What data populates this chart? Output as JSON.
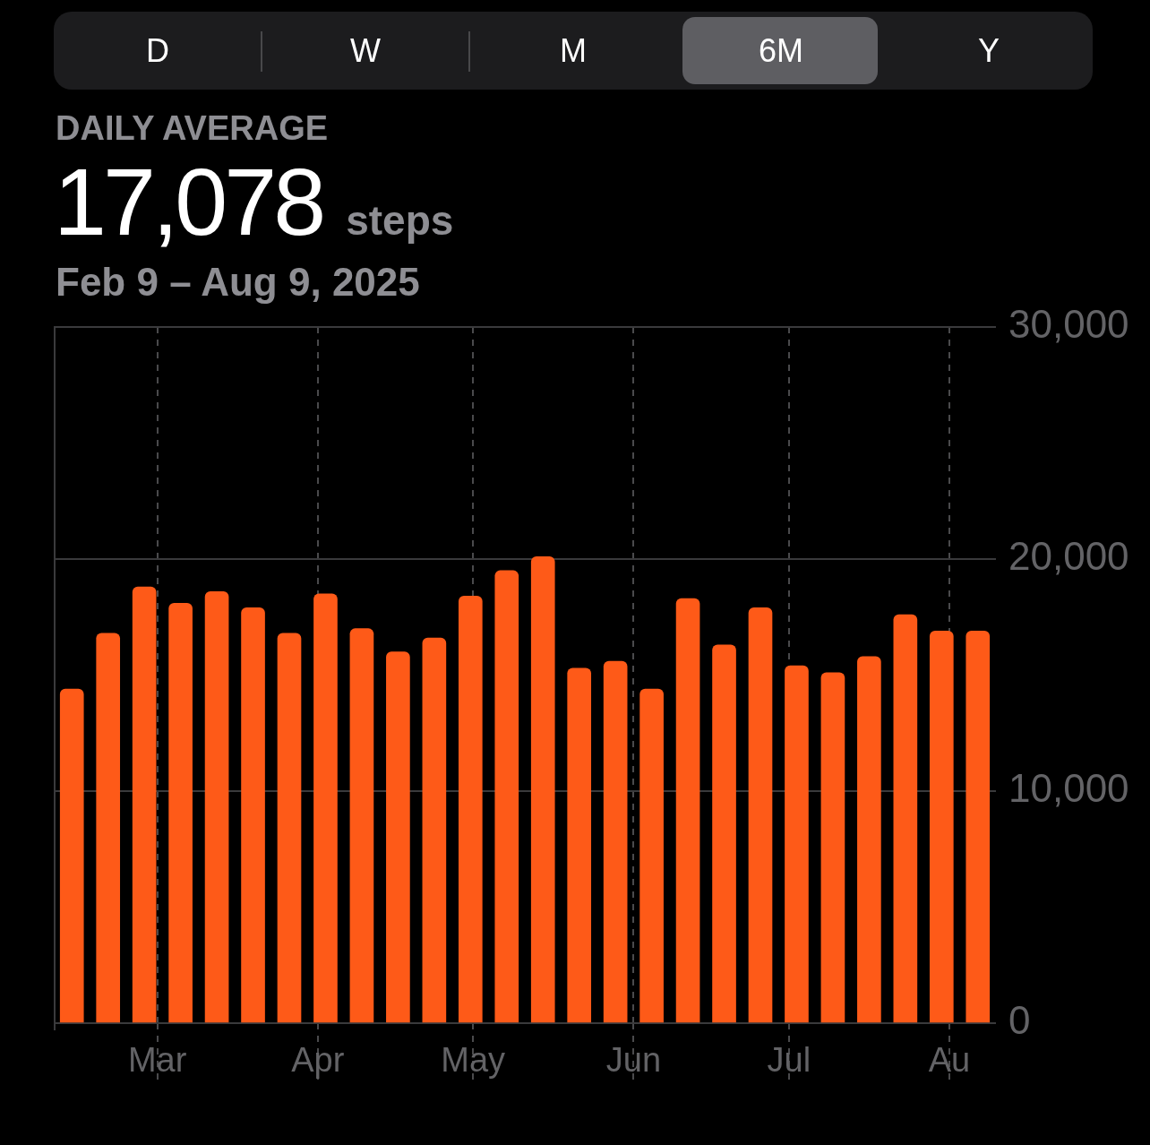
{
  "chart_data": {
    "type": "bar",
    "title": "DAILY AVERAGE",
    "subtitle": "Feb 9 – Aug 9, 2025",
    "annotations": [
      "D",
      "W",
      "M",
      "6M",
      "Y",
      "17,078",
      "steps"
    ],
    "x": [
      "2025-02-12T12:00",
      "2025-02-19T12:00",
      "2025-02-26T12:00",
      "2025-03-05T12:00",
      "2025-03-12T12:00",
      "2025-03-19T12:00",
      "2025-03-26T12:00",
      "2025-04-02T12:00",
      "2025-04-09T12:00",
      "2025-04-16T12:00",
      "2025-04-23T12:00",
      "2025-04-30T12:00",
      "2025-05-07T12:00",
      "2025-05-14T12:00",
      "2025-05-21T12:00",
      "2025-05-28T12:00",
      "2025-06-04T12:00",
      "2025-06-11T12:00",
      "2025-06-18T12:00",
      "2025-06-25T12:00",
      "2025-07-02T12:00",
      "2025-07-09T12:00",
      "2025-07-16T12:00",
      "2025-07-23T12:00",
      "2025-07-30T12:00",
      "2025-08-06T12:00"
    ],
    "values": [
      14400,
      16800,
      18800,
      18100,
      18600,
      17900,
      16800,
      18500,
      17000,
      16000,
      16600,
      18400,
      19500,
      20100,
      15300,
      15600,
      14400,
      18300,
      16300,
      17900,
      15400,
      15100,
      15800,
      17600,
      16900,
      16900
    ],
    "color": "#fe5a18",
    "xlim": [
      "2025-02-09",
      "2025-08-10"
    ],
    "xticks": [
      {
        "value": "2025-03-01",
        "label": "Mar"
      },
      {
        "value": "2025-04-01",
        "label": "Apr"
      },
      {
        "value": "2025-05-01",
        "label": "May"
      },
      {
        "value": "2025-06-01",
        "label": "Jun"
      },
      {
        "value": "2025-07-01",
        "label": "Jul"
      },
      {
        "value": "2025-08-01",
        "label": "Au"
      }
    ],
    "ylim": [
      0,
      30000
    ],
    "yticks": [
      {
        "value": 0,
        "label": "0"
      },
      {
        "value": 10000,
        "label": "10,000"
      },
      {
        "value": 20000,
        "label": "20,000"
      },
      {
        "value": 30000,
        "label": "30,000"
      }
    ],
    "grid": true
  }
}
